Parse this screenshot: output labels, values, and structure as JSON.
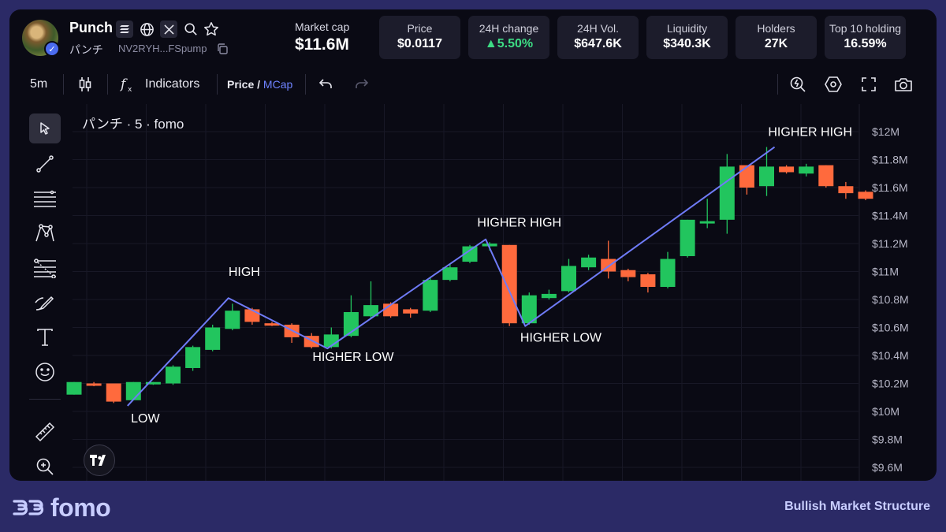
{
  "token": {
    "name": "Punch",
    "symbol": "パンチ",
    "address": "NV2RYH...FSpump"
  },
  "market_cap": {
    "label": "Market cap",
    "value": "$11.6M"
  },
  "stats": [
    {
      "label": "Price",
      "value": "$0.0117"
    },
    {
      "label": "24H change",
      "value": "▲5.50%",
      "color": "#3ddc84"
    },
    {
      "label": "24H Vol.",
      "value": "$647.6K"
    },
    {
      "label": "Liquidity",
      "value": "$340.3K"
    },
    {
      "label": "Holders",
      "value": "27K"
    },
    {
      "label": "Top 10 holding",
      "value": "16.59%"
    }
  ],
  "toolbar": {
    "interval": "5m",
    "indicators_label": "Indicators",
    "price_label": "Price /",
    "mcap_label": "MCap"
  },
  "chart_title": "パンチ · 5 · fomo",
  "footer": {
    "brand": "fomo",
    "caption": "Bullish Market Structure"
  },
  "colors": {
    "up": "#22c55e",
    "down": "#ff6a3d",
    "line": "#6f7bf7",
    "accent": "#6f83ff"
  },
  "chart_data": {
    "type": "candlestick",
    "y_ticks": [
      "$12M",
      "$11.8M",
      "$11.6M",
      "$11.4M",
      "$11.2M",
      "$11M",
      "$10.8M",
      "$10.6M",
      "$10.4M",
      "$10.2M",
      "$10M",
      "$9.8M",
      "$9.6M"
    ],
    "ylim": [
      9.55,
      12.1
    ],
    "candles": [
      {
        "o": 10.12,
        "c": 10.21,
        "h": 10.21,
        "l": 10.12
      },
      {
        "o": 10.2,
        "c": 10.19,
        "h": 10.21,
        "l": 10.18
      },
      {
        "o": 10.2,
        "c": 10.07,
        "h": 10.2,
        "l": 10.06
      },
      {
        "o": 10.08,
        "c": 10.21,
        "h": 10.21,
        "l": 10.08
      },
      {
        "o": 10.2,
        "c": 10.21,
        "h": 10.21,
        "l": 10.19
      },
      {
        "o": 10.2,
        "c": 10.32,
        "h": 10.33,
        "l": 10.19
      },
      {
        "o": 10.31,
        "c": 10.46,
        "h": 10.47,
        "l": 10.29
      },
      {
        "o": 10.44,
        "c": 10.6,
        "h": 10.62,
        "l": 10.43
      },
      {
        "o": 10.59,
        "c": 10.72,
        "h": 10.77,
        "l": 10.58
      },
      {
        "o": 10.73,
        "c": 10.64,
        "h": 10.74,
        "l": 10.62
      },
      {
        "o": 10.63,
        "c": 10.62,
        "h": 10.64,
        "l": 10.61
      },
      {
        "o": 10.62,
        "c": 10.53,
        "h": 10.63,
        "l": 10.49
      },
      {
        "o": 10.54,
        "c": 10.46,
        "h": 10.56,
        "l": 10.45
      },
      {
        "o": 10.46,
        "c": 10.55,
        "h": 10.6,
        "l": 10.45
      },
      {
        "o": 10.54,
        "c": 10.71,
        "h": 10.83,
        "l": 10.53
      },
      {
        "o": 10.68,
        "c": 10.76,
        "h": 10.93,
        "l": 10.67
      },
      {
        "o": 10.77,
        "c": 10.68,
        "h": 10.78,
        "l": 10.67
      },
      {
        "o": 10.73,
        "c": 10.7,
        "h": 10.74,
        "l": 10.67
      },
      {
        "o": 10.72,
        "c": 10.94,
        "h": 10.96,
        "l": 10.71
      },
      {
        "o": 10.94,
        "c": 11.03,
        "h": 11.05,
        "l": 10.93
      },
      {
        "o": 11.07,
        "c": 11.18,
        "h": 11.19,
        "l": 11.06
      },
      {
        "o": 11.18,
        "c": 11.2,
        "h": 11.21,
        "l": 11.15
      },
      {
        "o": 11.19,
        "c": 10.63,
        "h": 11.19,
        "l": 10.61
      },
      {
        "o": 10.63,
        "c": 10.83,
        "h": 10.85,
        "l": 10.62
      },
      {
        "o": 10.81,
        "c": 10.84,
        "h": 10.87,
        "l": 10.8
      },
      {
        "o": 10.86,
        "c": 11.04,
        "h": 11.09,
        "l": 10.85
      },
      {
        "o": 11.03,
        "c": 11.1,
        "h": 11.12,
        "l": 11.01
      },
      {
        "o": 11.09,
        "c": 11.0,
        "h": 11.22,
        "l": 10.95
      },
      {
        "o": 11.01,
        "c": 10.96,
        "h": 11.02,
        "l": 10.93
      },
      {
        "o": 10.98,
        "c": 10.89,
        "h": 10.99,
        "l": 10.85
      },
      {
        "o": 10.89,
        "c": 11.09,
        "h": 11.14,
        "l": 10.88
      },
      {
        "o": 11.11,
        "c": 11.37,
        "h": 11.37,
        "l": 11.1
      },
      {
        "o": 11.36,
        "c": 11.36,
        "h": 11.52,
        "l": 11.31
      },
      {
        "o": 11.37,
        "c": 11.75,
        "h": 11.84,
        "l": 11.27
      },
      {
        "o": 11.76,
        "c": 11.6,
        "h": 11.76,
        "l": 11.55
      },
      {
        "o": 11.61,
        "c": 11.75,
        "h": 11.89,
        "l": 11.54
      },
      {
        "o": 11.75,
        "c": 11.71,
        "h": 11.76,
        "l": 11.7
      },
      {
        "o": 11.7,
        "c": 11.75,
        "h": 11.77,
        "l": 11.68
      },
      {
        "o": 11.76,
        "c": 11.61,
        "h": 11.76,
        "l": 11.6
      },
      {
        "o": 11.61,
        "c": 11.56,
        "h": 11.64,
        "l": 11.52
      },
      {
        "o": 11.57,
        "c": 11.52,
        "h": 11.58,
        "l": 11.51
      }
    ],
    "structure_line": [
      {
        "i": 2.7,
        "v": 10.04
      },
      {
        "i": 7.8,
        "v": 10.81
      },
      {
        "i": 12.8,
        "v": 10.45
      },
      {
        "i": 20.8,
        "v": 11.23
      },
      {
        "i": 22.8,
        "v": 10.61
      },
      {
        "i": 35.4,
        "v": 11.89
      }
    ],
    "annotations": [
      {
        "text": "LOW",
        "i": 3.6,
        "v": 9.92
      },
      {
        "text": "HIGH",
        "i": 8.6,
        "v": 10.97
      },
      {
        "text": "HIGHER LOW",
        "i": 14.1,
        "v": 10.36
      },
      {
        "text": "HIGHER HIGH",
        "i": 22.5,
        "v": 11.32
      },
      {
        "text": "HIGHER LOW",
        "i": 24.6,
        "v": 10.5
      },
      {
        "text": "HIGHER HIGH",
        "i": 37.2,
        "v": 11.97
      }
    ]
  }
}
